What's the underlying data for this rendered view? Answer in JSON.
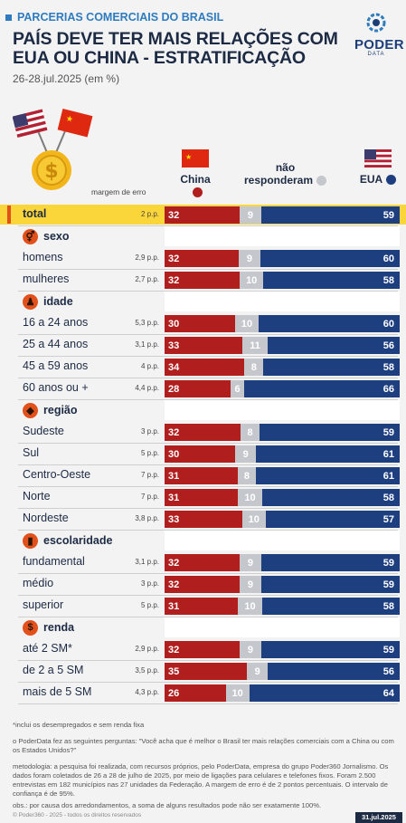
{
  "header": {
    "kicker": "PARCERIAS COMERCIAIS DO BRASIL",
    "title": "PAÍS DEVE TER MAIS RELAÇÕES COM EUA OU CHINA - ESTRATIFICAÇÃO",
    "subtitle": "26-28.jul.2025 (em %)",
    "logo_name": "PODER",
    "logo_sub": "DATA"
  },
  "columns": {
    "china": "China",
    "nr_line1": "não",
    "nr_line2": "responderam",
    "usa": "EUA",
    "margin_label": "margem de erro"
  },
  "colors": {
    "china": "#b01e1e",
    "no_answer": "#c4c8cc",
    "usa": "#1e3f7f",
    "highlight": "#fbd63a",
    "accent": "#e2501c"
  },
  "chart_data": {
    "type": "bar",
    "stacked": true,
    "orientation": "horizontal",
    "series_order": [
      "China",
      "não responderam",
      "EUA"
    ],
    "groups": [
      {
        "name": "total",
        "rows": [
          {
            "label": "total",
            "moe": "2 p.p.",
            "china": 32,
            "nr": 9,
            "usa": 59
          }
        ]
      },
      {
        "name": "sexo",
        "icon": "gender-icon",
        "rows": [
          {
            "label": "homens",
            "moe": "2,9 p.p.",
            "china": 32,
            "nr": 9,
            "usa": 60
          },
          {
            "label": "mulheres",
            "moe": "2,7 p.p.",
            "china": 32,
            "nr": 10,
            "usa": 58
          }
        ]
      },
      {
        "name": "idade",
        "icon": "person-icon",
        "rows": [
          {
            "label": "16 a 24 anos",
            "moe": "5,3 p.p.",
            "china": 30,
            "nr": 10,
            "usa": 60
          },
          {
            "label": "25 a 44 anos",
            "moe": "3,1 p.p.",
            "china": 33,
            "nr": 11,
            "usa": 56
          },
          {
            "label": "45 a 59 anos",
            "moe": "4 p.p.",
            "china": 34,
            "nr": 8,
            "usa": 58
          },
          {
            "label": "60 anos ou +",
            "moe": "4,4 p.p.",
            "china": 28,
            "nr": 6,
            "usa": 66
          }
        ]
      },
      {
        "name": "região",
        "icon": "map-icon",
        "rows": [
          {
            "label": "Sudeste",
            "moe": "3 p.p.",
            "china": 32,
            "nr": 8,
            "usa": 59
          },
          {
            "label": "Sul",
            "moe": "5 p.p.",
            "china": 30,
            "nr": 9,
            "usa": 61
          },
          {
            "label": "Centro-Oeste",
            "moe": "7 p.p.",
            "china": 31,
            "nr": 8,
            "usa": 61
          },
          {
            "label": "Norte",
            "moe": "7 p.p.",
            "china": 31,
            "nr": 10,
            "usa": 58
          },
          {
            "label": "Nordeste",
            "moe": "3,8 p.p.",
            "china": 33,
            "nr": 10,
            "usa": 57
          }
        ]
      },
      {
        "name": "escolaridade",
        "icon": "book-icon",
        "rows": [
          {
            "label": "fundamental",
            "moe": "3,1 p.p.",
            "china": 32,
            "nr": 9,
            "usa": 59
          },
          {
            "label": "médio",
            "moe": "3 p.p.",
            "china": 32,
            "nr": 9,
            "usa": 59
          },
          {
            "label": "superior",
            "moe": "5 p.p.",
            "china": 31,
            "nr": 10,
            "usa": 58
          }
        ]
      },
      {
        "name": "renda",
        "icon": "dollar-icon",
        "rows": [
          {
            "label": "até 2 SM*",
            "moe": "2,9 p.p.",
            "china": 32,
            "nr": 9,
            "usa": 59
          },
          {
            "label": "de 2 a 5 SM",
            "moe": "3,5 p.p.",
            "china": 35,
            "nr": 9,
            "usa": 56
          },
          {
            "label": "mais de 5 SM",
            "moe": "4,3 p.p.",
            "china": 26,
            "nr": 10,
            "usa": 64
          }
        ]
      }
    ]
  },
  "footer": {
    "note1": "*inclui os desempregados e sem renda fixa",
    "note2": "o PoderData fez as seguintes perguntas: \"Você acha que é melhor o Brasil ter mais relações comerciais com a China ou com os Estados Unidos?\"",
    "note3": "metodologia: a pesquisa foi realizada, com recursos próprios, pelo PoderData, empresa do grupo Poder360 Jornalismo. Os dados foram coletados de 26 a 28 de julho de 2025, por meio de ligações para celulares e telefones fixos. Foram 2.500 entrevistas em 182 municípios nas 27 unidades da Federação. A margem de erro é de 2 pontos percentuais. O intervalo de confiança é de 95%.",
    "note4": "obs.: por causa dos arredondamentos, a soma de alguns resultados pode não ser exatamente 100%.",
    "copyright": "© Poder360 - 2025 - todos os direitos reservados",
    "date": "31.jul.2025"
  }
}
